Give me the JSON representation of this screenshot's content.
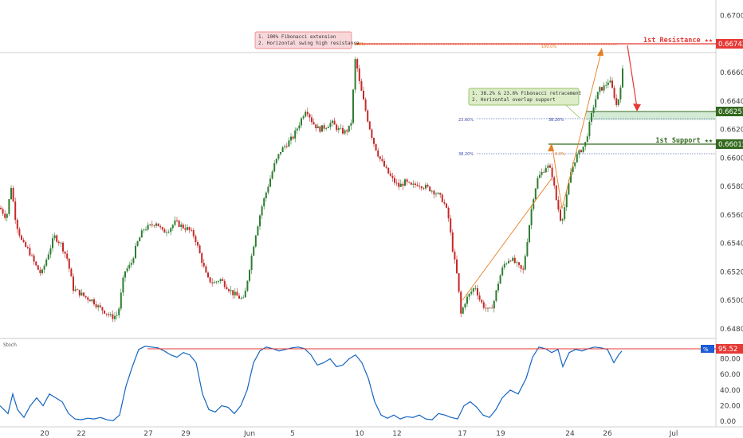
{
  "indicator_label": "Stoch",
  "colors": {
    "bull": "#2e7d32",
    "bear": "#c62828",
    "resistance": "#e53935",
    "support": "#33691e",
    "zone_green": "#c8e6c9",
    "fib_orange": "#e67e22",
    "stoch_line": "#1565c0"
  },
  "price_axis": {
    "ticks": [
      "0.67000",
      "0.66800",
      "0.66600",
      "0.66400",
      "0.66200",
      "0.66000",
      "0.65800",
      "0.65600",
      "0.65400",
      "0.65200",
      "0.65000",
      "0.64800"
    ]
  },
  "stoch_axis": {
    "ticks": [
      "80.00",
      "60.00",
      "40.00",
      "20.00",
      "0.00"
    ],
    "current_value": "95.52",
    "badge": "%"
  },
  "time_axis": {
    "labels": [
      "20",
      "22",
      "27",
      "29",
      "Jun",
      "5",
      "10",
      "12",
      "17",
      "19",
      "24",
      "26",
      "Jul"
    ]
  },
  "levels": {
    "resistance": {
      "label": "1st Resistance ★★",
      "price": "0.66742"
    },
    "mid": {
      "price": "0.66257"
    },
    "support": {
      "label": "1st Support ★★",
      "price": "0.66015"
    }
  },
  "annotations": {
    "resistance_note": [
      "1. 100% Fibonacci extension",
      "2. Horizontal swing high resistance"
    ],
    "support_note": [
      "1. 38.2% & 23.6% Fibonacci retracement",
      "2. Horizontal overlap support"
    ],
    "fib_labels": {
      "ext_100_left": "0.0%",
      "ext_100_right": "100.0%",
      "ret_236": "23.60%",
      "ret_382_a": "38.20%",
      "ret_382_b": "38.20%",
      "ret_0": "0.0%"
    }
  },
  "chart_data": {
    "type": "candlestick",
    "instrument_scale": {
      "ylim": [
        0.6476,
        0.6711
      ]
    },
    "stoch_ylim": [
      -5,
      105
    ],
    "x_labels": [
      "20",
      "22",
      "27",
      "29",
      "Jun",
      "5",
      "10",
      "12",
      "17",
      "19",
      "24",
      "26",
      "Jul"
    ],
    "close_path": [
      [
        0,
        0.6565
      ],
      [
        8,
        0.6558
      ],
      [
        14,
        0.658
      ],
      [
        20,
        0.6555
      ],
      [
        28,
        0.654
      ],
      [
        36,
        0.6535
      ],
      [
        44,
        0.6525
      ],
      [
        52,
        0.6518
      ],
      [
        60,
        0.6532
      ],
      [
        68,
        0.6545
      ],
      [
        76,
        0.654
      ],
      [
        84,
        0.653
      ],
      [
        92,
        0.6508
      ],
      [
        100,
        0.6505
      ],
      [
        108,
        0.6502
      ],
      [
        116,
        0.65
      ],
      [
        124,
        0.6495
      ],
      [
        132,
        0.6492
      ],
      [
        140,
        0.6488
      ],
      [
        148,
        0.649
      ],
      [
        156,
        0.652
      ],
      [
        164,
        0.6525
      ],
      [
        172,
        0.654
      ],
      [
        180,
        0.655
      ],
      [
        188,
        0.6552
      ],
      [
        196,
        0.6555
      ],
      [
        204,
        0.6548
      ],
      [
        212,
        0.655
      ],
      [
        220,
        0.6555
      ],
      [
        228,
        0.6552
      ],
      [
        236,
        0.655
      ],
      [
        244,
        0.6545
      ],
      [
        252,
        0.653
      ],
      [
        260,
        0.6515
      ],
      [
        268,
        0.6512
      ],
      [
        276,
        0.6515
      ],
      [
        284,
        0.651
      ],
      [
        292,
        0.6505
      ],
      [
        300,
        0.6502
      ],
      [
        306,
        0.65
      ],
      [
        312,
        0.652
      ],
      [
        320,
        0.6545
      ],
      [
        328,
        0.6565
      ],
      [
        336,
        0.658
      ],
      [
        344,
        0.6595
      ],
      [
        352,
        0.6605
      ],
      [
        360,
        0.661
      ],
      [
        368,
        0.6615
      ],
      [
        376,
        0.6625
      ],
      [
        384,
        0.6635
      ],
      [
        392,
        0.6625
      ],
      [
        400,
        0.662
      ],
      [
        408,
        0.6622
      ],
      [
        416,
        0.6625
      ],
      [
        424,
        0.662
      ],
      [
        432,
        0.6618
      ],
      [
        440,
        0.6622
      ],
      [
        446,
        0.6672
      ],
      [
        450,
        0.6655
      ],
      [
        456,
        0.664
      ],
      [
        462,
        0.6625
      ],
      [
        468,
        0.6612
      ],
      [
        476,
        0.66
      ],
      [
        484,
        0.6592
      ],
      [
        492,
        0.6585
      ],
      [
        500,
        0.658
      ],
      [
        508,
        0.6583
      ],
      [
        516,
        0.658
      ],
      [
        524,
        0.6582
      ],
      [
        532,
        0.658
      ],
      [
        540,
        0.6578
      ],
      [
        548,
        0.6575
      ],
      [
        556,
        0.657
      ],
      [
        562,
        0.656
      ],
      [
        568,
        0.6535
      ],
      [
        574,
        0.6515
      ],
      [
        578,
        0.649
      ],
      [
        584,
        0.65
      ],
      [
        590,
        0.6505
      ],
      [
        596,
        0.651
      ],
      [
        602,
        0.65
      ],
      [
        608,
        0.6495
      ],
      [
        614,
        0.6492
      ],
      [
        620,
        0.65
      ],
      [
        626,
        0.6515
      ],
      [
        632,
        0.6525
      ],
      [
        640,
        0.653
      ],
      [
        648,
        0.6525
      ],
      [
        656,
        0.652
      ],
      [
        662,
        0.6545
      ],
      [
        668,
        0.657
      ],
      [
        674,
        0.6585
      ],
      [
        680,
        0.659
      ],
      [
        686,
        0.6595
      ],
      [
        692,
        0.659
      ],
      [
        698,
        0.657
      ],
      [
        704,
        0.6555
      ],
      [
        710,
        0.657
      ],
      [
        716,
        0.659
      ],
      [
        722,
        0.66
      ],
      [
        728,
        0.6605
      ],
      [
        734,
        0.661
      ],
      [
        740,
        0.6625
      ],
      [
        746,
        0.664
      ],
      [
        752,
        0.6648
      ],
      [
        758,
        0.665
      ],
      [
        764,
        0.6655
      ],
      [
        770,
        0.6645
      ],
      [
        774,
        0.6635
      ],
      [
        778,
        0.665
      ],
      [
        782,
        0.6665
      ]
    ],
    "stoch_path": [
      [
        0,
        20
      ],
      [
        10,
        10
      ],
      [
        16,
        35
      ],
      [
        22,
        15
      ],
      [
        30,
        5
      ],
      [
        38,
        20
      ],
      [
        46,
        30
      ],
      [
        54,
        20
      ],
      [
        62,
        35
      ],
      [
        70,
        30
      ],
      [
        78,
        25
      ],
      [
        86,
        10
      ],
      [
        94,
        3
      ],
      [
        102,
        2
      ],
      [
        110,
        4
      ],
      [
        118,
        3
      ],
      [
        126,
        5
      ],
      [
        134,
        2
      ],
      [
        142,
        1
      ],
      [
        150,
        8
      ],
      [
        158,
        45
      ],
      [
        166,
        70
      ],
      [
        174,
        92
      ],
      [
        182,
        96
      ],
      [
        190,
        95
      ],
      [
        198,
        94
      ],
      [
        206,
        90
      ],
      [
        214,
        85
      ],
      [
        222,
        82
      ],
      [
        230,
        88
      ],
      [
        238,
        85
      ],
      [
        246,
        75
      ],
      [
        254,
        35
      ],
      [
        262,
        15
      ],
      [
        270,
        12
      ],
      [
        278,
        20
      ],
      [
        286,
        18
      ],
      [
        294,
        10
      ],
      [
        302,
        20
      ],
      [
        310,
        40
      ],
      [
        318,
        75
      ],
      [
        326,
        90
      ],
      [
        334,
        95
      ],
      [
        342,
        93
      ],
      [
        350,
        90
      ],
      [
        358,
        92
      ],
      [
        366,
        94
      ],
      [
        374,
        95
      ],
      [
        382,
        93
      ],
      [
        390,
        85
      ],
      [
        398,
        72
      ],
      [
        406,
        75
      ],
      [
        414,
        80
      ],
      [
        422,
        70
      ],
      [
        430,
        72
      ],
      [
        438,
        80
      ],
      [
        446,
        85
      ],
      [
        454,
        75
      ],
      [
        462,
        55
      ],
      [
        470,
        25
      ],
      [
        478,
        8
      ],
      [
        486,
        4
      ],
      [
        494,
        8
      ],
      [
        502,
        3
      ],
      [
        510,
        6
      ],
      [
        518,
        5
      ],
      [
        526,
        8
      ],
      [
        534,
        3
      ],
      [
        542,
        2
      ],
      [
        550,
        10
      ],
      [
        558,
        8
      ],
      [
        566,
        5
      ],
      [
        574,
        3
      ],
      [
        582,
        20
      ],
      [
        590,
        25
      ],
      [
        598,
        18
      ],
      [
        606,
        8
      ],
      [
        614,
        5
      ],
      [
        622,
        15
      ],
      [
        630,
        30
      ],
      [
        640,
        40
      ],
      [
        650,
        35
      ],
      [
        660,
        55
      ],
      [
        668,
        82
      ],
      [
        676,
        95
      ],
      [
        684,
        93
      ],
      [
        692,
        88
      ],
      [
        700,
        92
      ],
      [
        706,
        70
      ],
      [
        714,
        88
      ],
      [
        722,
        92
      ],
      [
        730,
        90
      ],
      [
        738,
        93
      ],
      [
        746,
        95
      ],
      [
        754,
        94
      ],
      [
        762,
        92
      ],
      [
        770,
        75
      ],
      [
        776,
        85
      ],
      [
        780,
        90
      ]
    ],
    "stoch_reference_level": 95.52
  }
}
